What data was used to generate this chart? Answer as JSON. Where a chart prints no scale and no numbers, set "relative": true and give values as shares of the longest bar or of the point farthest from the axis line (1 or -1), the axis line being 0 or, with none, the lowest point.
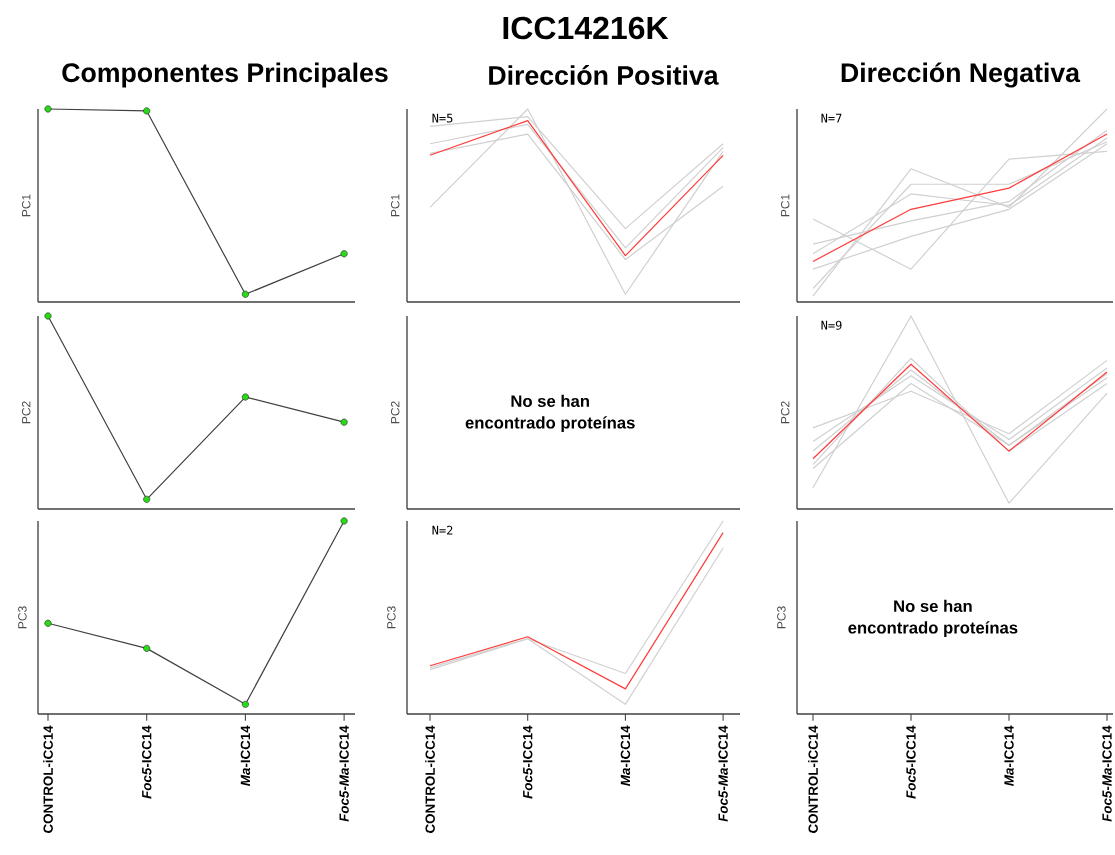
{
  "chart_data": [
    {
      "type": "line",
      "title": "Componentes Principales",
      "ylabel": "PC1",
      "relative": true,
      "marker": "circle",
      "tick_labels": false,
      "categories": [
        null,
        null,
        null,
        null
      ],
      "series": [
        {
          "color": "#404040",
          "values": [
            1,
            0.99,
            0.04,
            0.25
          ]
        }
      ]
    },
    {
      "type": "line",
      "title": "ICC14216K",
      "subtitle": "Dirección Positiva",
      "ylabel": "PC1",
      "relative": true,
      "tick_labels": false,
      "annotations": [
        "N=5"
      ],
      "categories": [
        null,
        null,
        null,
        null
      ],
      "series": [
        {
          "color": "#d0d0d0",
          "values": [
            0.49,
            1,
            0.04,
            0.78
          ]
        },
        {
          "color": "#d0d0d0",
          "values": [
            0.91,
            0.96,
            0.38,
            0.82
          ]
        },
        {
          "color": "#d0d0d0",
          "values": [
            0.82,
            0.92,
            0.28,
            0.8
          ]
        },
        {
          "color": "#d0d0d0",
          "values": [
            0.77,
            0.87,
            0.22,
            0.6
          ]
        },
        {
          "color": "#ff3b3b",
          "values": [
            0.76,
            0.94,
            0.24,
            0.76
          ]
        }
      ]
    },
    {
      "type": "line",
      "title": "Dirección Negativa",
      "ylabel": "PC1",
      "relative": true,
      "tick_labels": false,
      "annotations": [
        "N=7"
      ],
      "categories": [
        null,
        null,
        null,
        null
      ],
      "series": [
        {
          "color": "#d0d0d0",
          "values": [
            0.43,
            0.17,
            0.74,
            0.78
          ]
        },
        {
          "color": "#d0d0d0",
          "values": [
            0.03,
            0.69,
            0.49,
            1
          ]
        },
        {
          "color": "#d0d0d0",
          "values": [
            0.07,
            0.61,
            0.61,
            0.83
          ]
        },
        {
          "color": "#d0d0d0",
          "values": [
            0.3,
            0.42,
            0.52,
            0.89
          ]
        },
        {
          "color": "#d0d0d0",
          "values": [
            0.17,
            0.34,
            0.48,
            0.82
          ]
        },
        {
          "color": "#d0d0d0",
          "values": [
            0.25,
            0.56,
            0.5,
            0.85
          ]
        },
        {
          "color": "#ff3b3b",
          "values": [
            0.21,
            0.48,
            0.59,
            0.87
          ]
        }
      ]
    },
    {
      "type": "line",
      "ylabel": "PC2",
      "relative": true,
      "marker": "circle",
      "tick_labels": false,
      "categories": [
        null,
        null,
        null,
        null
      ],
      "series": [
        {
          "color": "#404040",
          "values": [
            1,
            0.05,
            0.58,
            0.45
          ]
        }
      ]
    },
    {
      "type": "other",
      "ylabel": "PC2",
      "annotations": [
        "No se han",
        "encontrado proteínas"
      ]
    },
    {
      "type": "line",
      "ylabel": "PC2",
      "relative": true,
      "tick_labels": false,
      "annotations": [
        "N=9"
      ],
      "categories": [
        null,
        null,
        null,
        null
      ],
      "series": [
        {
          "color": "#d0d0d0",
          "values": [
            0.11,
            1,
            0.03,
            0.6
          ]
        },
        {
          "color": "#d0d0d0",
          "values": [
            0.42,
            0.61,
            0.39,
            0.77
          ]
        },
        {
          "color": "#d0d0d0",
          "values": [
            0.35,
            0.69,
            0.36,
            0.73
          ]
        },
        {
          "color": "#d0d0d0",
          "values": [
            0.3,
            0.72,
            0.33,
            0.68
          ]
        },
        {
          "color": "#d0d0d0",
          "values": [
            0.23,
            0.78,
            0.3,
            0.65
          ]
        },
        {
          "color": "#d0d0d0",
          "values": [
            0.21,
            0.65,
            0.33,
            0.7
          ]
        },
        {
          "color": "#ff3b3b",
          "values": [
            0.26,
            0.75,
            0.3,
            0.71
          ]
        }
      ]
    },
    {
      "type": "line",
      "ylabel": "PC3",
      "relative": true,
      "marker": "circle",
      "tick_labels": "x",
      "categories": [
        "CONTROL-iCC14",
        "*Foc5*-ICC14",
        "*Ma*-ICC14",
        "*Foc5*-*Ma*-ICC14"
      ],
      "series": [
        {
          "color": "#404040",
          "values": [
            0.47,
            0.34,
            0.05,
            1
          ]
        }
      ]
    },
    {
      "type": "line",
      "ylabel": "PC3",
      "relative": true,
      "tick_labels": "x",
      "annotations": [
        "N=2"
      ],
      "categories": [
        "CONTROL-iCC14",
        "*Foc5*-ICC14",
        "*Ma*-ICC14",
        "*Foc5*-*Ma*-ICC14"
      ],
      "series": [
        {
          "color": "#d0d0d0",
          "values": [
            0.23,
            0.39,
            0.21,
            1
          ]
        },
        {
          "color": "#d0d0d0",
          "values": [
            0.24,
            0.39,
            0.05,
            0.86
          ]
        },
        {
          "color": "#ff3b3b",
          "values": [
            0.25,
            0.4,
            0.13,
            0.94
          ]
        }
      ]
    },
    {
      "type": "other",
      "ylabel": "PC3",
      "annotations": [
        "No se han",
        "encontrado proteínas"
      ],
      "categories": [
        "CONTROL-iCC14",
        "*Foc5*-ICC14",
        "*Ma*-ICC14",
        "*Foc5*-*Ma*-ICC14"
      ]
    }
  ]
}
